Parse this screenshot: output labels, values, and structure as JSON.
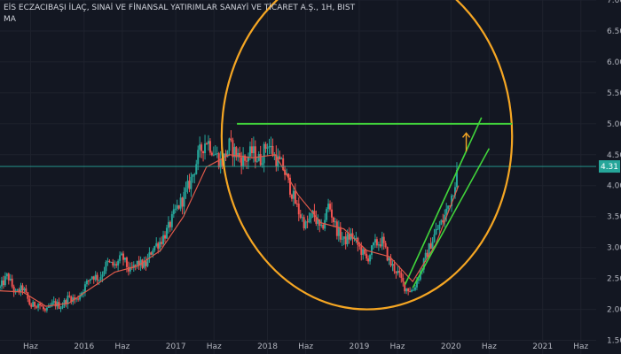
{
  "header": {
    "symbol_title": "EİS ECZACIBAŞI İLAÇ, SINAİ VE FİNANSAL YATIRIMLAR SANAYİ VE TİCARET A.Ş., 1H, BIST",
    "indicator": "MA"
  },
  "colors": {
    "background": "#131722",
    "grid": "#1e222d",
    "axis_text": "#b2b5be",
    "candle_up": "#26a69a",
    "candle_down": "#ef5350",
    "ma_line": "#e05a4a",
    "ellipse": "#f5a623",
    "annotation_green": "#41d33b",
    "price_line": "#26a69a"
  },
  "chart_data": {
    "type": "candlestick",
    "xlim": [
      "2015-02",
      "2021-08"
    ],
    "ylim": [
      1.25,
      7.0
    ],
    "yticks": [
      "1.50",
      "2.00",
      "2.50",
      "3.00",
      "3.50",
      "4.00",
      "4.50",
      "5.00",
      "5.50",
      "6.00",
      "6.50",
      "7.00"
    ],
    "xticks": [
      {
        "label": "Haz",
        "date": "2015-06"
      },
      {
        "label": "2016",
        "date": "2016-01"
      },
      {
        "label": "Haz",
        "date": "2016-06"
      },
      {
        "label": "2017",
        "date": "2017-01"
      },
      {
        "label": "Haz",
        "date": "2017-06"
      },
      {
        "label": "2018",
        "date": "2018-01"
      },
      {
        "label": "Haz",
        "date": "2018-06"
      },
      {
        "label": "2019",
        "date": "2019-01"
      },
      {
        "label": "Haz",
        "date": "2019-06"
      },
      {
        "label": "2020",
        "date": "2020-01"
      },
      {
        "label": "Haz",
        "date": "2020-06"
      },
      {
        "label": "2021",
        "date": "2021-01"
      },
      {
        "label": "Haz",
        "date": "2021-06"
      }
    ],
    "last_price": "4.31",
    "price_path": [
      [
        "2015-02",
        2.35
      ],
      [
        "2015-03",
        2.55
      ],
      [
        "2015-04",
        2.25
      ],
      [
        "2015-05",
        2.35
      ],
      [
        "2015-06",
        2.05
      ],
      [
        "2015-07",
        2.1
      ],
      [
        "2015-08",
        1.95
      ],
      [
        "2015-09",
        2.1
      ],
      [
        "2015-10",
        2.05
      ],
      [
        "2015-11",
        2.2
      ],
      [
        "2015-12",
        2.15
      ],
      [
        "2016-01",
        2.35
      ],
      [
        "2016-02",
        2.55
      ],
      [
        "2016-03",
        2.5
      ],
      [
        "2016-04",
        2.75
      ],
      [
        "2016-05",
        2.7
      ],
      [
        "2016-06",
        2.85
      ],
      [
        "2016-07",
        2.6
      ],
      [
        "2016-08",
        2.75
      ],
      [
        "2016-09",
        2.7
      ],
      [
        "2016-10",
        3.0
      ],
      [
        "2016-11",
        3.1
      ],
      [
        "2016-12",
        3.3
      ],
      [
        "2017-01",
        3.6
      ],
      [
        "2017-02",
        3.8
      ],
      [
        "2017-03",
        4.1
      ],
      [
        "2017-04",
        4.5
      ],
      [
        "2017-05",
        4.75
      ],
      [
        "2017-06",
        4.55
      ],
      [
        "2017-07",
        4.35
      ],
      [
        "2017-08",
        4.65
      ],
      [
        "2017-09",
        4.5
      ],
      [
        "2017-10",
        4.4
      ],
      [
        "2017-11",
        4.55
      ],
      [
        "2017-12",
        4.4
      ],
      [
        "2018-01",
        4.7
      ],
      [
        "2018-02",
        4.45
      ],
      [
        "2018-03",
        4.3
      ],
      [
        "2018-04",
        3.95
      ],
      [
        "2018-05",
        3.6
      ],
      [
        "2018-06",
        3.35
      ],
      [
        "2018-07",
        3.55
      ],
      [
        "2018-08",
        3.25
      ],
      [
        "2018-09",
        3.7
      ],
      [
        "2018-10",
        3.3
      ],
      [
        "2018-11",
        3.1
      ],
      [
        "2018-12",
        3.2
      ],
      [
        "2019-01",
        3.0
      ],
      [
        "2019-02",
        2.8
      ],
      [
        "2019-03",
        3.05
      ],
      [
        "2019-04",
        3.1
      ],
      [
        "2019-05",
        2.75
      ],
      [
        "2019-06",
        2.6
      ],
      [
        "2019-07",
        2.35
      ],
      [
        "2019-08",
        2.3
      ],
      [
        "2019-09",
        2.6
      ],
      [
        "2019-10",
        2.95
      ],
      [
        "2019-11",
        3.25
      ],
      [
        "2019-12",
        3.45
      ],
      [
        "2020-01",
        3.8
      ],
      [
        "2020-02",
        4.31
      ]
    ],
    "ma_path": [
      [
        "2015-02",
        2.3
      ],
      [
        "2015-05",
        2.28
      ],
      [
        "2015-08",
        2.05
      ],
      [
        "2015-11",
        2.1
      ],
      [
        "2016-02",
        2.35
      ],
      [
        "2016-05",
        2.6
      ],
      [
        "2016-08",
        2.7
      ],
      [
        "2016-11",
        2.95
      ],
      [
        "2017-02",
        3.5
      ],
      [
        "2017-05",
        4.3
      ],
      [
        "2017-08",
        4.5
      ],
      [
        "2017-11",
        4.45
      ],
      [
        "2018-02",
        4.5
      ],
      [
        "2018-05",
        3.85
      ],
      [
        "2018-08",
        3.4
      ],
      [
        "2018-11",
        3.3
      ],
      [
        "2019-02",
        2.95
      ],
      [
        "2019-05",
        2.85
      ],
      [
        "2019-08",
        2.45
      ],
      [
        "2019-11",
        3.05
      ],
      [
        "2020-02",
        4.0
      ]
    ],
    "annotations": {
      "resistance_price": 5.0,
      "resistance_from": "2017-09",
      "resistance_to": "2020-09",
      "ellipse": {
        "x_from": "2017-07",
        "x_to": "2020-09",
        "y_low": 2.0,
        "y_high": 7.6
      },
      "channel_upper": [
        [
          "2019-07",
          2.4
        ],
        [
          "2020-05",
          5.1
        ]
      ],
      "channel_lower": [
        [
          "2019-08",
          2.35
        ],
        [
          "2020-06",
          4.6
        ]
      ],
      "channel_middle": [
        [
          "2019-07",
          2.4
        ],
        [
          "2020-03",
          4.55
        ]
      ],
      "arrow_up": {
        "date": "2020-03",
        "from": 4.55,
        "to": 4.85
      }
    }
  }
}
